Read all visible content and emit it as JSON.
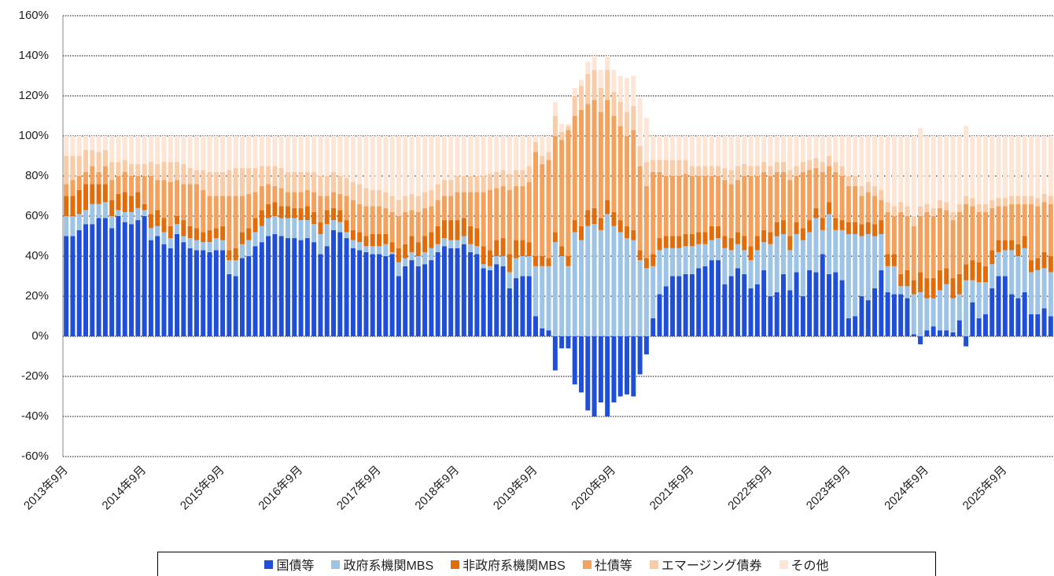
{
  "chart_data": {
    "type": "stacked_bar",
    "categories": [
      "2013年9月",
      null,
      null,
      null,
      null,
      null,
      null,
      null,
      null,
      null,
      null,
      null,
      "2014年9月",
      null,
      null,
      null,
      null,
      null,
      null,
      null,
      null,
      null,
      null,
      null,
      "2015年9月",
      null,
      null,
      null,
      null,
      null,
      null,
      null,
      null,
      null,
      null,
      null,
      "2016年9月",
      null,
      null,
      null,
      null,
      null,
      null,
      null,
      null,
      null,
      null,
      null,
      "2017年9月",
      null,
      null,
      null,
      null,
      null,
      null,
      null,
      null,
      null,
      null,
      null,
      "2018年9月",
      null,
      null,
      null,
      null,
      null,
      null,
      null,
      null,
      null,
      null,
      null,
      "2019年9月",
      null,
      null,
      null,
      null,
      null,
      null,
      null,
      null,
      null,
      null,
      null,
      "2020年9月",
      null,
      null,
      null,
      null,
      null,
      null,
      null,
      null,
      null,
      null,
      null,
      "2021年9月",
      null,
      null,
      null,
      null,
      null,
      null,
      null,
      null,
      null,
      null,
      null,
      "2022年9月",
      null,
      null,
      null,
      null,
      null,
      null,
      null,
      null,
      null,
      null,
      null,
      "2023年9月",
      null,
      null,
      null,
      null,
      null,
      null,
      null,
      null,
      null,
      null,
      null,
      "2024年9月",
      null,
      null,
      null,
      null,
      null,
      null,
      null,
      null,
      null,
      null,
      null,
      "2025年9月",
      null,
      null,
      null,
      null,
      null,
      null,
      null
    ],
    "series": [
      {
        "name": "国債等",
        "color": "#1f4fd8",
        "values": [
          50,
          50,
          53,
          56,
          56,
          59,
          59,
          54,
          60,
          57,
          56,
          58,
          60,
          48,
          50,
          46,
          44,
          51,
          47,
          44,
          43,
          43,
          42,
          43,
          43,
          31,
          30,
          39,
          40,
          45,
          47,
          50,
          51,
          50,
          49,
          49,
          48,
          49,
          47,
          41,
          45,
          53,
          52,
          49,
          44,
          43,
          42,
          41,
          41,
          40,
          41,
          30,
          35,
          38,
          35,
          36,
          38,
          42,
          45,
          44,
          44,
          46,
          42,
          41,
          34,
          33,
          36,
          35,
          24,
          29,
          30,
          30,
          10,
          4,
          3,
          -17,
          -6,
          -6,
          -24,
          -28,
          -37,
          -40,
          -33,
          -40,
          -33,
          -30,
          -29,
          -30,
          -19,
          -9,
          9,
          21,
          25,
          30,
          30,
          31,
          31,
          34,
          35,
          38,
          38,
          26,
          30,
          34,
          31,
          24,
          26,
          33,
          20,
          22,
          31,
          23,
          32,
          20,
          33,
          32,
          41,
          31,
          32,
          28,
          9,
          10,
          20,
          18,
          24,
          33,
          22,
          21,
          21,
          19,
          1,
          -4,
          3,
          5,
          3,
          3,
          2,
          8,
          -5,
          17,
          9,
          11,
          24,
          30,
          30,
          21,
          19,
          22,
          11,
          11,
          14,
          10
        ]
      },
      {
        "name": "政府系機関MBS",
        "color": "#9dc3e6",
        "values": [
          10,
          10,
          8,
          7,
          10,
          7,
          8,
          6,
          3,
          5,
          6,
          6,
          3,
          6,
          5,
          6,
          5,
          5,
          3,
          5,
          5,
          4,
          5,
          6,
          5,
          7,
          8,
          7,
          8,
          7,
          8,
          9,
          9,
          9,
          10,
          10,
          10,
          9,
          9,
          10,
          11,
          5,
          5,
          3,
          4,
          4,
          3,
          4,
          4,
          6,
          1,
          7,
          4,
          4,
          5,
          6,
          6,
          4,
          4,
          4,
          4,
          4,
          4,
          4,
          2,
          2,
          4,
          5,
          8,
          10,
          10,
          10,
          25,
          31,
          32,
          47,
          40,
          35,
          52,
          48,
          55,
          56,
          53,
          61,
          55,
          52,
          49,
          48,
          38,
          34,
          26,
          22,
          19,
          14,
          14,
          14,
          14,
          12,
          11,
          10,
          11,
          18,
          13,
          12,
          12,
          14,
          17,
          14,
          26,
          28,
          20,
          20,
          19,
          28,
          19,
          27,
          12,
          30,
          21,
          25,
          42,
          41,
          30,
          33,
          26,
          18,
          13,
          14,
          4,
          6,
          20,
          22,
          16,
          14,
          20,
          23,
          17,
          13,
          28,
          11,
          18,
          16,
          12,
          12,
          13,
          22,
          21,
          22,
          21,
          22,
          20,
          22
        ]
      },
      {
        "name": "非政府系機関MBS",
        "color": "#e36c0a",
        "values": [
          10,
          10,
          12,
          13,
          10,
          10,
          9,
          8,
          8,
          10,
          8,
          8,
          3,
          7,
          8,
          7,
          6,
          4,
          8,
          6,
          6,
          5,
          6,
          5,
          7,
          5,
          6,
          6,
          6,
          7,
          8,
          7,
          7,
          6,
          6,
          5,
          6,
          7,
          6,
          6,
          7,
          6,
          6,
          6,
          5,
          5,
          5,
          6,
          6,
          5,
          5,
          7,
          7,
          8,
          7,
          8,
          8,
          9,
          9,
          10,
          10,
          9,
          9,
          9,
          9,
          8,
          8,
          9,
          9,
          9,
          8,
          7,
          5,
          5,
          4,
          5,
          5,
          5,
          6,
          7,
          8,
          8,
          6,
          7,
          7,
          6,
          6,
          5,
          5,
          5,
          6,
          6,
          6,
          6,
          6,
          6,
          6,
          6,
          6,
          7,
          6,
          6,
          6,
          6,
          7,
          7,
          7,
          6,
          6,
          7,
          7,
          7,
          6,
          6,
          6,
          5,
          6,
          6,
          6,
          5,
          6,
          6,
          6,
          6,
          6,
          7,
          6,
          6,
          6,
          8,
          7,
          10,
          10,
          10,
          10,
          8,
          10,
          10,
          8,
          10,
          10,
          8,
          7,
          6,
          5,
          5,
          6,
          6,
          6,
          6,
          8,
          8
        ]
      },
      {
        "name": "社債等",
        "color": "#f4a15d",
        "values": [
          6,
          8,
          7,
          6,
          9,
          6,
          9,
          10,
          9,
          10,
          10,
          8,
          14,
          19,
          15,
          19,
          22,
          18,
          18,
          21,
          22,
          21,
          17,
          16,
          15,
          27,
          26,
          18,
          17,
          13,
          12,
          10,
          8,
          9,
          7,
          8,
          8,
          8,
          10,
          13,
          7,
          8,
          8,
          12,
          15,
          14,
          15,
          14,
          14,
          13,
          15,
          16,
          16,
          13,
          15,
          14,
          13,
          13,
          12,
          12,
          14,
          13,
          17,
          18,
          27,
          30,
          26,
          26,
          32,
          27,
          27,
          30,
          52,
          46,
          49,
          48,
          53,
          63,
          52,
          58,
          53,
          54,
          53,
          50,
          48,
          47,
          45,
          50,
          42,
          36,
          41,
          33,
          30,
          30,
          30,
          30,
          29,
          28,
          28,
          25,
          25,
          28,
          27,
          26,
          30,
          35,
          30,
          29,
          28,
          25,
          24,
          28,
          23,
          28,
          25,
          20,
          23,
          18,
          23,
          22,
          18,
          18,
          14,
          15,
          14,
          10,
          21,
          19,
          31,
          27,
          27,
          28,
          33,
          31,
          31,
          29,
          29,
          31,
          30,
          27,
          25,
          27,
          21,
          17,
          17,
          18,
          20,
          16,
          28,
          26,
          25,
          26
        ]
      },
      {
        "name": "エマージング債券",
        "color": "#f9cba7",
        "values": [
          14,
          12,
          10,
          11,
          8,
          10,
          8,
          9,
          7,
          6,
          6,
          6,
          6,
          7,
          8,
          9,
          10,
          9,
          10,
          8,
          7,
          10,
          12,
          12,
          12,
          13,
          14,
          14,
          13,
          12,
          10,
          9,
          10,
          10,
          10,
          10,
          10,
          9,
          10,
          10,
          10,
          10,
          9,
          9,
          9,
          10,
          9,
          8,
          8,
          8,
          8,
          8,
          8,
          8,
          8,
          8,
          8,
          8,
          8,
          8,
          8,
          8,
          8,
          8,
          8,
          8,
          8,
          8,
          8,
          8,
          8,
          8,
          5,
          4,
          4,
          10,
          4,
          2,
          10,
          12,
          15,
          15,
          12,
          15,
          12,
          12,
          12,
          12,
          10,
          12,
          6,
          6,
          8,
          8,
          8,
          7,
          5,
          5,
          5,
          5,
          5,
          6,
          7,
          7,
          6,
          5,
          5,
          5,
          5,
          5,
          5,
          5,
          5,
          5,
          5,
          5,
          5,
          5,
          5,
          5,
          5,
          5,
          5,
          5,
          5,
          5,
          5,
          5,
          5,
          5,
          5,
          5,
          4,
          4,
          4,
          4,
          4,
          4,
          4,
          4,
          4,
          4,
          4,
          4,
          4,
          4,
          4,
          4,
          4,
          4,
          4,
          4
        ]
      },
      {
        "name": "その他",
        "color": "#fde6d6",
        "values": [
          10,
          10,
          10,
          7,
          7,
          8,
          7,
          13,
          13,
          12,
          14,
          14,
          14,
          13,
          14,
          13,
          13,
          13,
          14,
          16,
          17,
          17,
          18,
          18,
          18,
          17,
          16,
          16,
          16,
          16,
          15,
          15,
          15,
          16,
          18,
          18,
          18,
          18,
          18,
          20,
          20,
          18,
          20,
          21,
          23,
          24,
          26,
          27,
          27,
          28,
          30,
          32,
          30,
          29,
          30,
          28,
          27,
          24,
          22,
          22,
          20,
          20,
          20,
          20,
          20,
          19,
          18,
          17,
          19,
          17,
          17,
          15,
          3,
          10,
          8,
          7,
          4,
          1,
          4,
          3,
          6,
          7,
          9,
          7,
          11,
          13,
          17,
          15,
          24,
          22,
          12,
          12,
          12,
          12,
          12,
          12,
          15,
          15,
          15,
          15,
          15,
          16,
          17,
          15,
          14,
          15,
          15,
          13,
          15,
          13,
          13,
          17,
          15,
          13,
          12,
          11,
          13,
          10,
          13,
          15,
          20,
          20,
          25,
          23,
          25,
          27,
          33,
          35,
          33,
          35,
          40,
          39,
          34,
          36,
          32,
          33,
          38,
          34,
          35,
          31,
          34,
          34,
          32,
          31,
          31,
          30,
          30,
          30,
          30,
          31,
          29,
          30
        ]
      }
    ],
    "ylim": [
      -60,
      160
    ],
    "yticks": [
      {
        "value": -60,
        "label": "-60%"
      },
      {
        "value": -40,
        "label": "-40%"
      },
      {
        "value": -20,
        "label": "-20%"
      },
      {
        "value": 0,
        "label": "0%"
      },
      {
        "value": 20,
        "label": "20%"
      },
      {
        "value": 40,
        "label": "40%"
      },
      {
        "value": 60,
        "label": "60%"
      },
      {
        "value": 80,
        "label": "80%"
      },
      {
        "value": 100,
        "label": "100%"
      },
      {
        "value": 120,
        "label": "120%"
      },
      {
        "value": 140,
        "label": "140%"
      },
      {
        "value": 160,
        "label": "160%"
      }
    ],
    "grid": true
  }
}
